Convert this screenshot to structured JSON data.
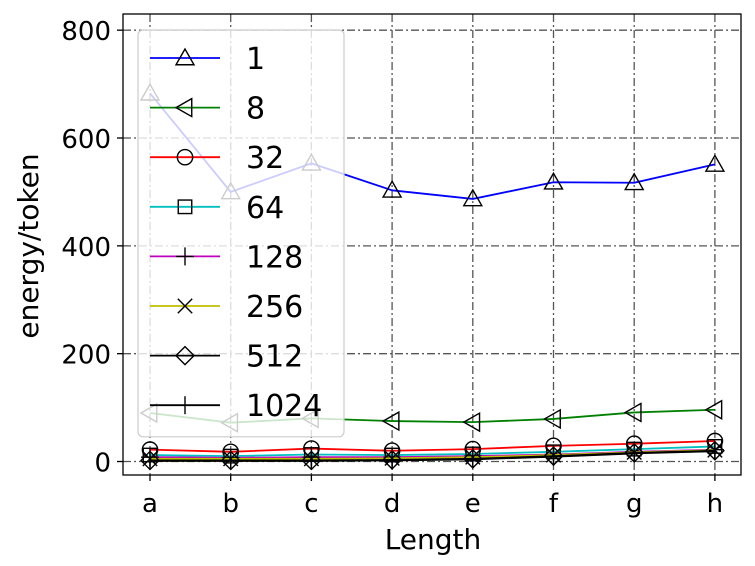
{
  "chart_data": {
    "type": "line",
    "xlabel": "Length",
    "ylabel": "energy/token",
    "categories": [
      "a",
      "b",
      "c",
      "d",
      "e",
      "f",
      "g",
      "h"
    ],
    "ylim": [
      -25,
      830
    ],
    "yticks": [
      0,
      200,
      400,
      600,
      800
    ],
    "grid": true,
    "legend_position": "upper-left",
    "series": [
      {
        "name": "1",
        "color": "#0000ff",
        "marker": "triangle-up",
        "values": [
          683,
          500,
          553,
          503,
          487,
          518,
          517,
          551
        ]
      },
      {
        "name": "8",
        "color": "#008000",
        "marker": "triangle-left",
        "values": [
          90,
          72,
          80,
          75,
          73,
          79,
          91,
          96
        ]
      },
      {
        "name": "32",
        "color": "#ff0000",
        "marker": "circle",
        "values": [
          22,
          18,
          24,
          20,
          23,
          29,
          33,
          38
        ]
      },
      {
        "name": "64",
        "color": "#00bfbf",
        "marker": "square",
        "values": [
          12,
          10,
          13,
          12,
          14,
          18,
          23,
          28
        ]
      },
      {
        "name": "128",
        "color": "#bf00bf",
        "marker": "plus",
        "values": [
          8,
          7,
          8,
          8,
          10,
          13,
          18,
          22
        ]
      },
      {
        "name": "256",
        "color": "#bfbf00",
        "marker": "x",
        "values": [
          5,
          5,
          5,
          6,
          8,
          12,
          17,
          21
        ]
      },
      {
        "name": "512",
        "color": "#000000",
        "marker": "diamond",
        "values": [
          2,
          2,
          2,
          3,
          5,
          10,
          16,
          20
        ]
      },
      {
        "name": "1024",
        "color": "#000000",
        "marker": "vline",
        "values": [
          1,
          1,
          1,
          2,
          4,
          9,
          15,
          19
        ]
      }
    ]
  }
}
